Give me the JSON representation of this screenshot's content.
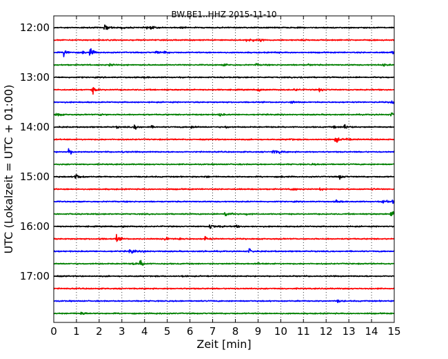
{
  "chart_data": {
    "type": "line",
    "title": "BW.BE1..HHZ 2015-11-10",
    "xlabel": "Zeit  [min]",
    "ylabel": "UTC (Lokalzeit = UTC + 01:00)",
    "xlim": [
      0,
      15
    ],
    "x_ticks": [
      0,
      1,
      2,
      3,
      4,
      5,
      6,
      7,
      8,
      9,
      10,
      11,
      12,
      13,
      14,
      15
    ],
    "y_tick_labels": [
      "12:00",
      "13:00",
      "14:00",
      "15:00",
      "16:00",
      "17:00"
    ],
    "grid": "vertical dotted",
    "colors": [
      "#000000",
      "#ff0000",
      "#0000ff",
      "#008000"
    ],
    "rows": [
      {
        "label": "12:00",
        "color": "#000000",
        "events": [
          [
            2.25,
            1.0
          ],
          [
            3.0,
            0.25
          ],
          [
            4.1,
            0.35
          ],
          [
            4.3,
            0.3
          ],
          [
            5.6,
            0.2
          ]
        ]
      },
      {
        "label": "12:15",
        "color": "#ff0000",
        "events": [
          [
            8.5,
            0.4
          ],
          [
            8.75,
            0.35
          ],
          [
            9.1,
            0.2
          ],
          [
            11.0,
            0.15
          ]
        ]
      },
      {
        "label": "12:30",
        "color": "#0000ff",
        "events": [
          [
            0.45,
            1.0
          ],
          [
            1.6,
            1.0
          ],
          [
            1.25,
            0.35
          ],
          [
            4.5,
            0.35
          ],
          [
            4.85,
            0.3
          ],
          [
            9.75,
            0.2
          ],
          [
            14.9,
            0.4
          ]
        ]
      },
      {
        "label": "12:45",
        "color": "#008000",
        "events": [
          [
            2.45,
            0.3
          ],
          [
            7.5,
            0.3
          ],
          [
            8.9,
            0.25
          ],
          [
            11.2,
            0.2
          ],
          [
            14.5,
            0.35
          ]
        ]
      },
      {
        "label": "13:00",
        "color": "#000000",
        "events": [
          [
            4.0,
            0.15
          ],
          [
            10.9,
            0.15
          ]
        ]
      },
      {
        "label": "13:15",
        "color": "#ff0000",
        "events": [
          [
            1.7,
            0.8
          ],
          [
            9.0,
            0.35
          ],
          [
            10.6,
            0.3
          ],
          [
            11.7,
            0.4
          ]
        ]
      },
      {
        "label": "13:30",
        "color": "#0000ff",
        "events": [
          [
            10.45,
            0.3
          ],
          [
            14.85,
            0.6
          ]
        ]
      },
      {
        "label": "13:45",
        "color": "#008000",
        "events": [
          [
            0.1,
            0.6
          ],
          [
            2.05,
            0.3
          ],
          [
            7.3,
            0.35
          ],
          [
            14.85,
            0.4
          ]
        ]
      },
      {
        "label": "14:00",
        "color": "#000000",
        "events": [
          [
            2.75,
            0.25
          ],
          [
            3.55,
            0.6
          ],
          [
            4.3,
            0.2
          ],
          [
            6.05,
            0.35
          ],
          [
            7.55,
            0.25
          ],
          [
            12.8,
            0.9
          ],
          [
            12.3,
            0.3
          ]
        ]
      },
      {
        "label": "14:15",
        "color": "#ff0000",
        "events": [
          [
            10.4,
            0.2
          ],
          [
            12.4,
            0.9
          ],
          [
            12.9,
            0.3
          ]
        ]
      },
      {
        "label": "14:30",
        "color": "#0000ff",
        "events": [
          [
            0.65,
            0.8
          ],
          [
            9.65,
            0.5
          ],
          [
            9.95,
            0.3
          ],
          [
            3.0,
            0.15
          ]
        ]
      },
      {
        "label": "14:45",
        "color": "#008000",
        "events": [
          [
            11.4,
            0.15
          ]
        ]
      },
      {
        "label": "15:00",
        "color": "#000000",
        "events": [
          [
            0.95,
            1.0
          ],
          [
            6.7,
            0.2
          ],
          [
            12.55,
            0.55
          ],
          [
            10.0,
            0.15
          ]
        ]
      },
      {
        "label": "15:15",
        "color": "#ff0000",
        "events": [
          [
            10.45,
            0.6
          ],
          [
            11.7,
            0.3
          ],
          [
            14.0,
            0.2
          ]
        ]
      },
      {
        "label": "15:30",
        "color": "#0000ff",
        "events": [
          [
            12.45,
            0.3
          ],
          [
            14.5,
            0.5
          ],
          [
            14.9,
            0.6
          ]
        ]
      },
      {
        "label": "15:45",
        "color": "#008000",
        "events": [
          [
            7.55,
            0.9
          ],
          [
            8.5,
            0.3
          ],
          [
            14.85,
            0.8
          ]
        ]
      },
      {
        "label": "16:00",
        "color": "#000000",
        "events": [
          [
            6.85,
            0.9
          ],
          [
            7.95,
            0.4
          ],
          [
            7.3,
            0.25
          ],
          [
            3.0,
            0.2
          ]
        ]
      },
      {
        "label": "16:15",
        "color": "#ff0000",
        "events": [
          [
            2.75,
            0.8
          ],
          [
            4.9,
            0.6
          ],
          [
            5.55,
            0.3
          ],
          [
            6.65,
            0.6
          ],
          [
            2.0,
            0.2
          ]
        ]
      },
      {
        "label": "16:30",
        "color": "#0000ff",
        "events": [
          [
            3.35,
            0.8
          ],
          [
            3.95,
            0.25
          ],
          [
            8.6,
            0.6
          ],
          [
            6.6,
            0.15
          ]
        ]
      },
      {
        "label": "16:45",
        "color": "#008000",
        "events": [
          [
            3.8,
            0.8
          ],
          [
            3.45,
            0.3
          ],
          [
            8.95,
            0.2
          ]
        ]
      },
      {
        "label": "17:00",
        "color": "#000000",
        "events": [
          [
            5.65,
            0.15
          ]
        ]
      },
      {
        "label": "17:15",
        "color": "#ff0000",
        "events": []
      },
      {
        "label": "17:30",
        "color": "#0000ff",
        "events": [
          [
            12.5,
            0.3
          ]
        ]
      },
      {
        "label": "17:45",
        "color": "#008000",
        "events": [
          [
            1.2,
            0.45
          ],
          [
            4.5,
            0.15
          ]
        ]
      }
    ]
  }
}
